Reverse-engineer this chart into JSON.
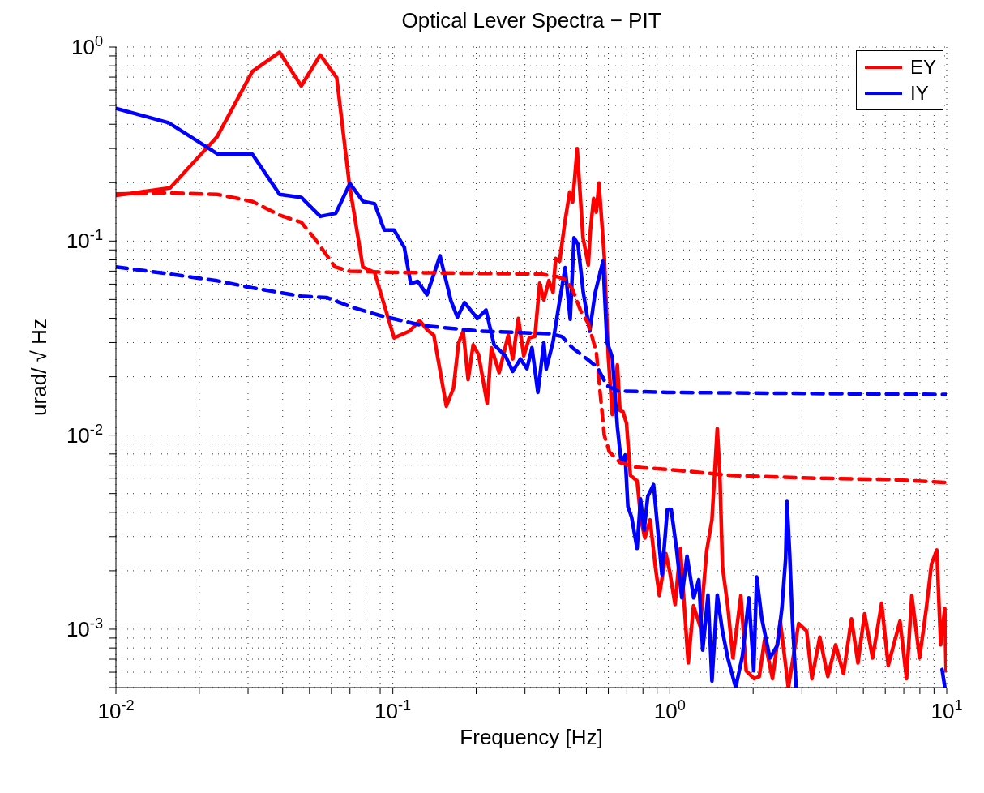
{
  "chart_data": {
    "type": "line",
    "title": "Optical Lever Spectra − PIT",
    "xlabel": "Frequency [Hz]",
    "ylabel": "urad/ √ Hz",
    "log": "xy",
    "grid": true,
    "legend": "top right",
    "marker": "none",
    "xlim": [
      0.01,
      10
    ],
    "xticks": [
      {
        "value": 0.01,
        "label": "10$^{-2}$"
      },
      {
        "value": 0.02,
        "label": null
      },
      {
        "value": 0.03,
        "label": null
      },
      {
        "value": 0.04,
        "label": null
      },
      {
        "value": 0.05,
        "label": null
      },
      {
        "value": 0.06,
        "label": null
      },
      {
        "value": 0.07,
        "label": null
      },
      {
        "value": 0.08,
        "label": null
      },
      {
        "value": 0.09,
        "label": null
      },
      {
        "value": 0.1,
        "label": "10$^{-1}$"
      },
      {
        "value": 0.2,
        "label": null
      },
      {
        "value": 0.3,
        "label": null
      },
      {
        "value": 0.4,
        "label": null
      },
      {
        "value": 0.5,
        "label": null
      },
      {
        "value": 0.6,
        "label": null
      },
      {
        "value": 0.7,
        "label": null
      },
      {
        "value": 0.8,
        "label": null
      },
      {
        "value": 0.9,
        "label": null
      },
      {
        "value": 1,
        "label": "10$^{0}$"
      },
      {
        "value": 2,
        "label": null
      },
      {
        "value": 3,
        "label": null
      },
      {
        "value": 4,
        "label": null
      },
      {
        "value": 5,
        "label": null
      },
      {
        "value": 6,
        "label": null
      },
      {
        "value": 7,
        "label": null
      },
      {
        "value": 8,
        "label": null
      },
      {
        "value": 9,
        "label": null
      },
      {
        "value": 10,
        "label": "10$^{1}$"
      }
    ],
    "ylim": [
      0.0005,
      1
    ],
    "yticks": [
      {
        "value": 0.0005,
        "label": null
      },
      {
        "value": 0.0006,
        "label": null
      },
      {
        "value": 0.0007,
        "label": null
      },
      {
        "value": 0.0008,
        "label": null
      },
      {
        "value": 0.0009,
        "label": null
      },
      {
        "value": 0.001,
        "label": "10$^{-3}$"
      },
      {
        "value": 0.002,
        "label": null
      },
      {
        "value": 0.003,
        "label": null
      },
      {
        "value": 0.004,
        "label": null
      },
      {
        "value": 0.005,
        "label": null
      },
      {
        "value": 0.006,
        "label": null
      },
      {
        "value": 0.007,
        "label": null
      },
      {
        "value": 0.008,
        "label": null
      },
      {
        "value": 0.009,
        "label": null
      },
      {
        "value": 0.01,
        "label": "10$^{-2}$"
      },
      {
        "value": 0.02,
        "label": null
      },
      {
        "value": 0.03,
        "label": null
      },
      {
        "value": 0.04,
        "label": null
      },
      {
        "value": 0.05,
        "label": null
      },
      {
        "value": 0.06,
        "label": null
      },
      {
        "value": 0.07,
        "label": null
      },
      {
        "value": 0.08,
        "label": null
      },
      {
        "value": 0.09,
        "label": null
      },
      {
        "value": 0.1,
        "label": "10$^{-1}$"
      },
      {
        "value": 0.2,
        "label": null
      },
      {
        "value": 0.3,
        "label": null
      },
      {
        "value": 0.4,
        "label": null
      },
      {
        "value": 0.5,
        "label": null
      },
      {
        "value": 0.6,
        "label": null
      },
      {
        "value": 0.7,
        "label": null
      },
      {
        "value": 0.8,
        "label": null
      },
      {
        "value": 0.9,
        "label": null
      },
      {
        "value": 1,
        "label": "10$^{0}$"
      }
    ],
    "series": [
      {
        "name": "EY",
        "color": "#ff0000",
        "line_style": "solid",
        "x": [
          0.01,
          0.0157,
          0.0232,
          0.0311,
          0.039,
          0.0467,
          0.0547,
          0.0627,
          0.0696,
          0.0779,
          0.0859,
          0.101,
          0.115,
          0.125,
          0.1328,
          0.1406,
          0.156,
          0.1656,
          0.1726,
          0.1795,
          0.187,
          0.195,
          0.204,
          0.219,
          0.227,
          0.242,
          0.261,
          0.271,
          0.284,
          0.297,
          0.311,
          0.326,
          0.339,
          0.351,
          0.366,
          0.379,
          0.387,
          0.4,
          0.418,
          0.435,
          0.446,
          0.463,
          0.486,
          0.508,
          0.517,
          0.531,
          0.543,
          0.555,
          0.58,
          0.6,
          0.62,
          0.647,
          0.661,
          0.678,
          0.698,
          0.721,
          0.762,
          0.787,
          0.813,
          0.849,
          0.887,
          0.917,
          0.968,
          1.0,
          1.045,
          1.092,
          1.166,
          1.218,
          1.288,
          1.359,
          1.42,
          1.484,
          1.517,
          1.55,
          1.619,
          1.691,
          1.806,
          1.888,
          2.015,
          2.105,
          2.199,
          2.35,
          2.506,
          2.68,
          2.92,
          3.12,
          3.26,
          3.48,
          3.72,
          3.97,
          4.24,
          4.53,
          4.78,
          5.05,
          5.4,
          5.82,
          6.15,
          6.78,
          7.16,
          7.48,
          7.98,
          8.44,
          8.81,
          9.21,
          9.51,
          9.84,
          9.95
        ],
        "values": [
          0.172,
          0.188,
          0.345,
          0.748,
          0.94,
          0.63,
          0.91,
          0.695,
          0.198,
          0.0736,
          0.0689,
          0.0317,
          0.0344,
          0.0389,
          0.035,
          0.0327,
          0.0141,
          0.0175,
          0.0297,
          0.0344,
          0.0193,
          0.0292,
          0.026,
          0.0146,
          0.0282,
          0.021,
          0.0327,
          0.0247,
          0.0399,
          0.0256,
          0.0317,
          0.0323,
          0.0607,
          0.0497,
          0.0625,
          0.0545,
          0.0813,
          0.0788,
          0.125,
          0.179,
          0.159,
          0.3,
          0.104,
          0.0753,
          0.114,
          0.166,
          0.141,
          0.199,
          0.0839,
          0.0252,
          0.0128,
          0.023,
          0.0134,
          0.0132,
          0.0115,
          0.0062,
          0.00582,
          0.00366,
          0.00295,
          0.00366,
          0.0021,
          0.00149,
          0.00245,
          0.00197,
          0.00134,
          0.00261,
          0.00067,
          0.00132,
          0.00103,
          0.00253,
          0.00366,
          0.0108,
          0.0062,
          0.0021,
          0.00132,
          0.00071,
          0.00149,
          0.00061,
          0.000556,
          0.00057,
          0.00088,
          0.000556,
          0.0011,
          0.0005,
          0.00107,
          0.00098,
          0.000556,
          0.00091,
          0.00057,
          0.00083,
          0.00059,
          0.00113,
          0.00067,
          0.0012,
          0.00071,
          0.00136,
          0.00065,
          0.0011,
          0.000556,
          0.00149,
          0.00071,
          0.00128,
          0.00217,
          0.00256,
          0.00083,
          0.00128,
          0.00061
        ]
      },
      {
        "name": "IY",
        "color": "#0000ff",
        "line_style": "solid",
        "x": [
          0.01,
          0.0155,
          0.0234,
          0.0311,
          0.039,
          0.0467,
          0.0547,
          0.0622,
          0.07,
          0.0781,
          0.0859,
          0.0931,
          0.101,
          0.11,
          0.116,
          0.123,
          0.1328,
          0.148,
          0.162,
          0.171,
          0.1815,
          0.202,
          0.217,
          0.232,
          0.255,
          0.271,
          0.289,
          0.305,
          0.318,
          0.334,
          0.351,
          0.358,
          0.379,
          0.395,
          0.419,
          0.437,
          0.451,
          0.466,
          0.487,
          0.514,
          0.537,
          0.574,
          0.593,
          0.62,
          0.647,
          0.668,
          0.69,
          0.706,
          0.728,
          0.762,
          0.784,
          0.808,
          0.833,
          0.874,
          0.937,
          0.98,
          1.012,
          1.057,
          1.105,
          1.154,
          1.22,
          1.273,
          1.315,
          1.374,
          1.42,
          1.484,
          1.549,
          1.62,
          1.73,
          1.83,
          1.93,
          2.01,
          2.06,
          2.15,
          2.3,
          2.45,
          2.54,
          2.62,
          2.65,
          2.71,
          2.77,
          2.86,
          5.0,
          9.62,
          9.85
        ],
        "values": [
          0.483,
          0.407,
          0.28,
          0.28,
          0.174,
          0.168,
          0.134,
          0.139,
          0.198,
          0.16,
          0.156,
          0.114,
          0.114,
          0.0927,
          0.0603,
          0.062,
          0.0529,
          0.084,
          0.0494,
          0.0405,
          0.0482,
          0.0399,
          0.0441,
          0.0292,
          0.0256,
          0.0213,
          0.0247,
          0.022,
          0.0282,
          0.0166,
          0.0299,
          0.0219,
          0.0303,
          0.0439,
          0.073,
          0.0395,
          0.104,
          0.0963,
          0.0545,
          0.0343,
          0.0537,
          0.0788,
          0.0303,
          0.0252,
          0.011,
          0.0072,
          0.0079,
          0.00428,
          0.00378,
          0.00261,
          0.00469,
          0.00324,
          0.00484,
          0.00556,
          0.00191,
          0.00414,
          0.00414,
          0.00261,
          0.00145,
          0.00238,
          0.00145,
          0.0018,
          0.00078,
          0.0015,
          0.00054,
          0.0015,
          0.00098,
          0.00071,
          0.0005,
          0.00073,
          0.00145,
          0.00061,
          0.00186,
          0.00113,
          0.00071,
          0.00083,
          0.00128,
          0.00231,
          0.00455,
          0.00245,
          0.00113,
          0.0005,
          null,
          0.00062,
          0.0005
        ]
      },
      {
        "color": "#ff0000",
        "line_style": "dashed",
        "x": [
          0.01,
          0.0155,
          0.0232,
          0.0311,
          0.039,
          0.0467,
          0.0525,
          0.0618,
          0.0696,
          0.101,
          0.162,
          0.343,
          0.391,
          0.418,
          0.446,
          0.476,
          0.508,
          0.543,
          0.561,
          0.58,
          0.605,
          0.661,
          0.753,
          1.069,
          1.655,
          3.19,
          6.14,
          10
        ],
        "values": [
          0.175,
          0.177,
          0.174,
          0.16,
          0.136,
          0.125,
          0.102,
          0.0736,
          0.07,
          0.0689,
          0.0684,
          0.0676,
          0.0656,
          0.0635,
          0.0562,
          0.0439,
          0.0376,
          0.0268,
          0.0164,
          0.01,
          0.0082,
          0.00723,
          0.00684,
          0.00659,
          0.0062,
          0.00601,
          0.00591,
          0.0057
        ]
      },
      {
        "color": "#0000ff",
        "line_style": "dashed",
        "x": [
          0.01,
          0.0155,
          0.0232,
          0.0311,
          0.0467,
          0.0577,
          0.0713,
          0.09,
          0.128,
          0.204,
          0.367,
          0.408,
          0.446,
          0.508,
          0.548,
          0.593,
          0.647,
          0.98,
          9.62,
          10
        ],
        "values": [
          0.0736,
          0.0678,
          0.0624,
          0.0574,
          0.052,
          0.0512,
          0.0456,
          0.0413,
          0.0367,
          0.0344,
          0.0333,
          0.0322,
          0.0281,
          0.0244,
          0.0223,
          0.018,
          0.0169,
          0.0166,
          0.0162,
          0.0162
        ]
      }
    ]
  }
}
